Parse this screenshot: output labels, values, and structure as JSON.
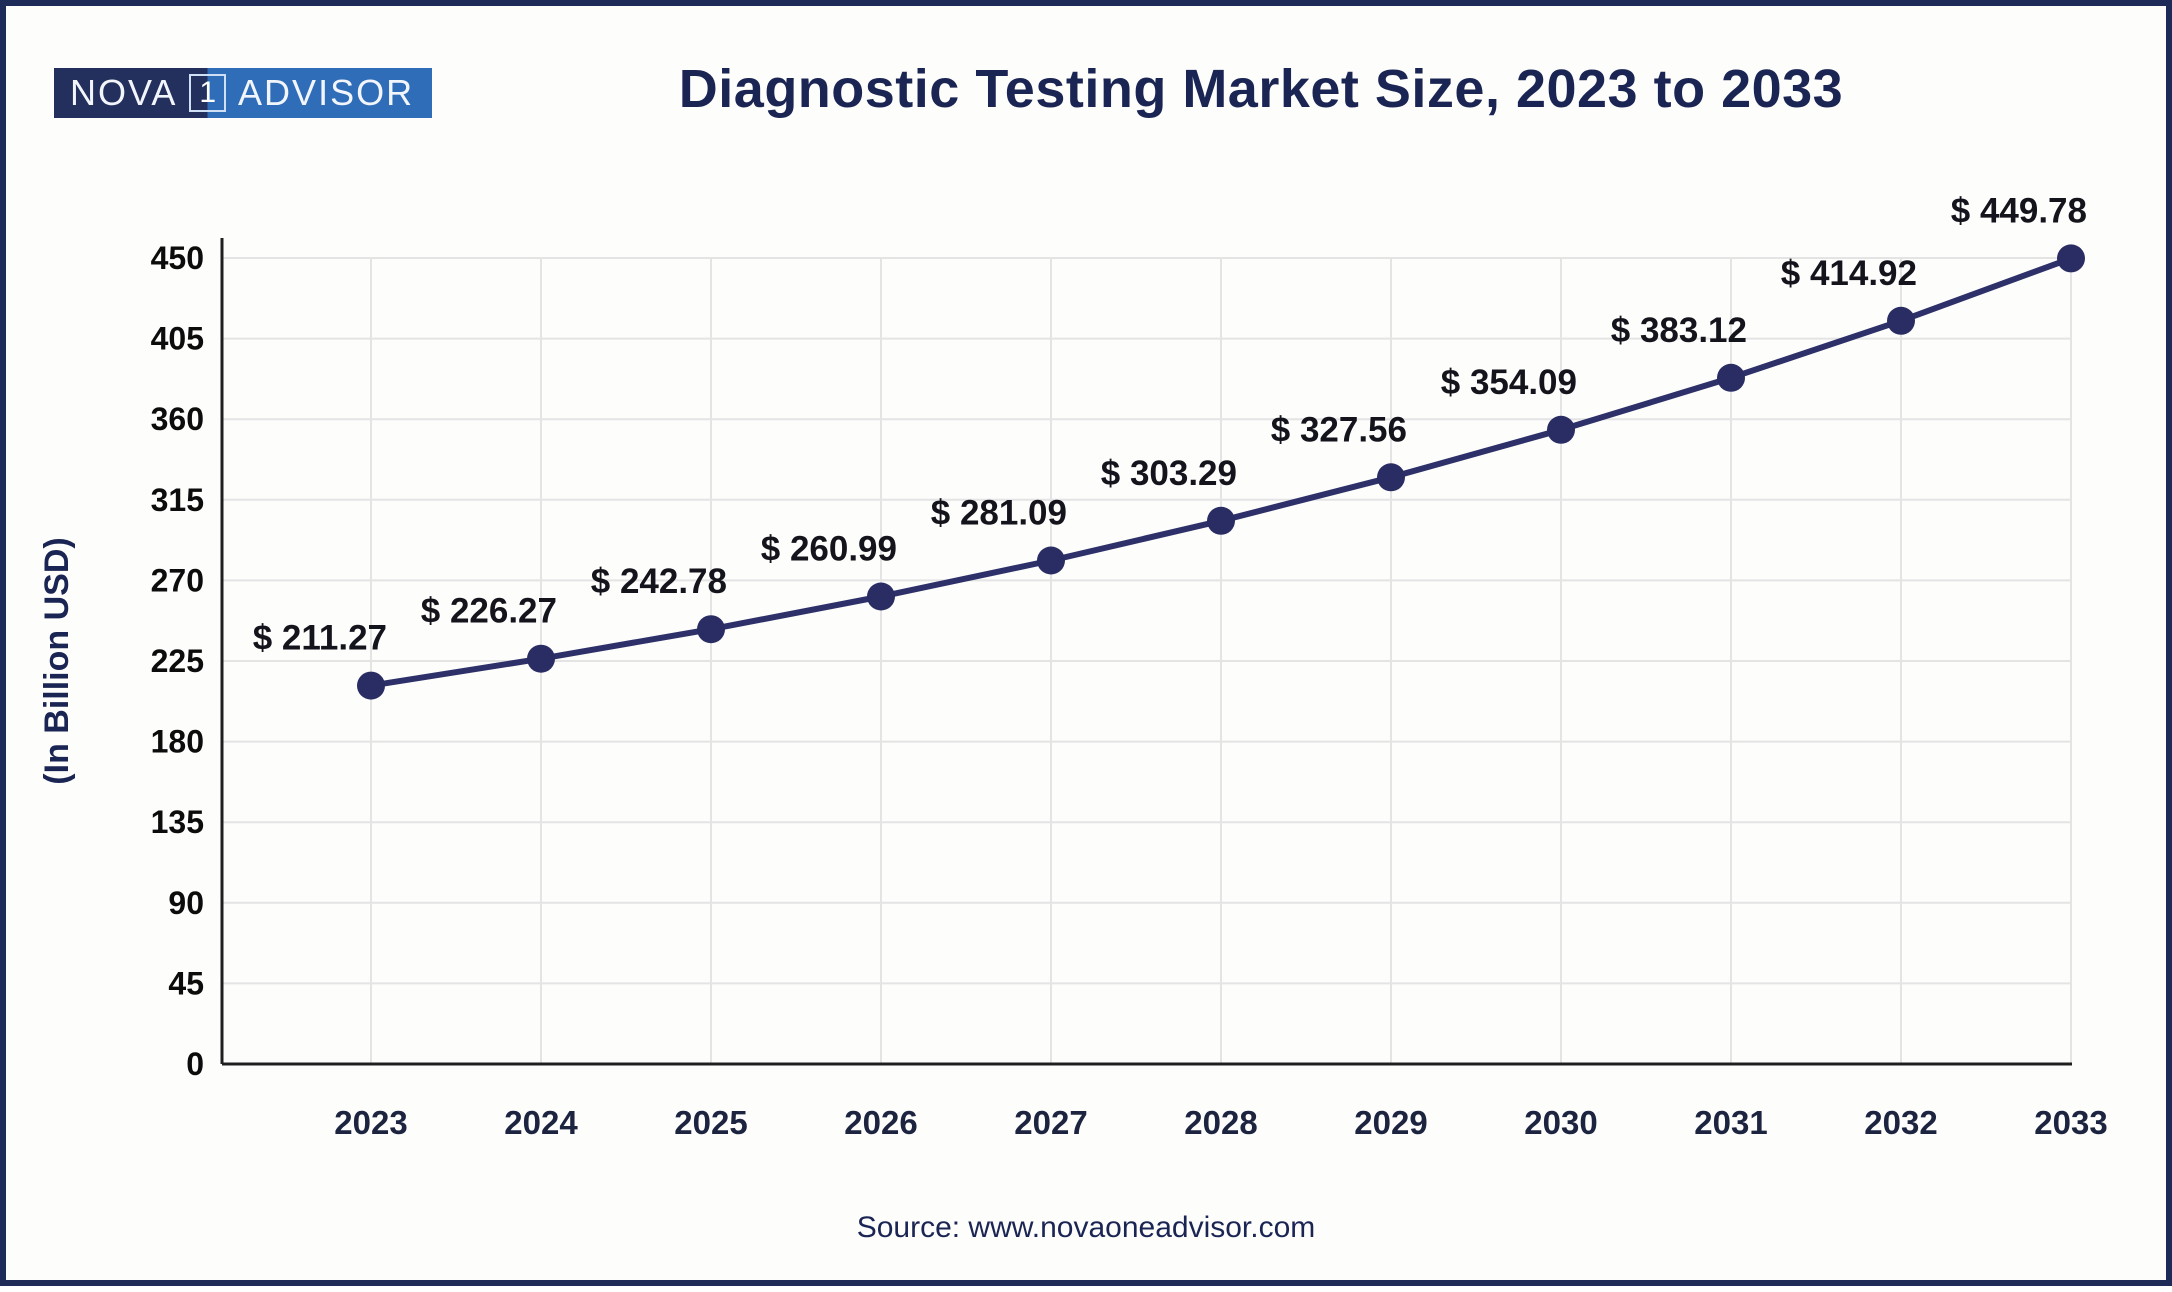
{
  "branding": {
    "logo_text_left": "NOVA",
    "logo_text_box": "1",
    "logo_text_right": "ADVISOR",
    "logo_dark_color": "#232f5c",
    "logo_blue_color": "#2f6db8"
  },
  "header": {
    "title": "Diagnostic Testing Market Size, 2023 to 2033"
  },
  "footer": {
    "source": "Source: www.novaoneadvisor.com"
  },
  "chart_data": {
    "type": "line",
    "title": "Diagnostic Testing Market Size, 2023 to 2033",
    "categories": [
      "2023",
      "2024",
      "2025",
      "2026",
      "2027",
      "2028",
      "2029",
      "2030",
      "2031",
      "2032",
      "2033"
    ],
    "values": [
      211.27,
      226.27,
      242.78,
      260.99,
      281.09,
      303.29,
      327.56,
      354.09,
      383.12,
      414.92,
      449.78
    ],
    "data_labels": [
      "$ 211.27",
      "$ 226.27",
      "$ 242.78",
      "$ 260.99",
      "$ 281.09",
      "$ 303.29",
      "$ 327.56",
      "$ 354.09",
      "$ 383.12",
      "$ 414.92",
      "$ 449.78"
    ],
    "xlabel": "",
    "ylabel": "(In Billion USD)",
    "yticks": [
      0,
      45,
      90,
      135,
      180,
      225,
      270,
      315,
      360,
      405,
      450
    ],
    "ylim": [
      0,
      450
    ],
    "grid": "both",
    "legend": "none",
    "colors": {
      "line": "#2e3169",
      "marker": "#2a2d63",
      "grid": "#e4e4e4",
      "axis": "#1f1f1f",
      "y_tick_text": "#0c0c0c",
      "x_tick_text": "#1c2440",
      "data_label_text": "#14141c",
      "navy_text": "#1b2554"
    }
  }
}
